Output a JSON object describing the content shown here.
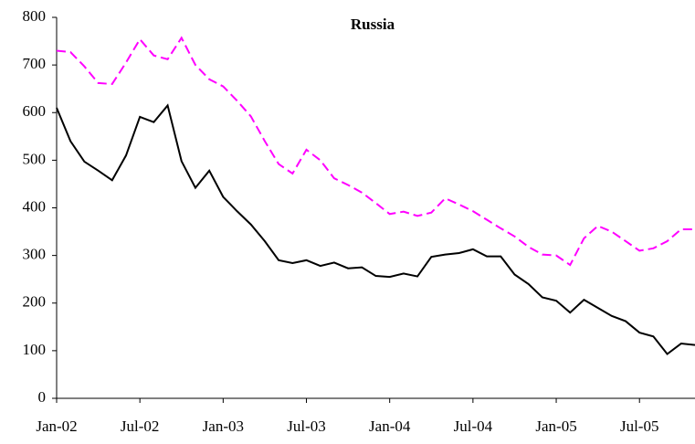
{
  "chart_data": {
    "type": "line",
    "title": "Russia",
    "categories": [
      "Jan-02",
      null,
      null,
      null,
      null,
      null,
      "Jul-02",
      null,
      null,
      null,
      null,
      null,
      "Jan-03",
      null,
      null,
      null,
      null,
      null,
      "Jul-03",
      null,
      null,
      null,
      null,
      null,
      "Jan-04",
      null,
      null,
      null,
      null,
      null,
      "Jul-04",
      null,
      null,
      null,
      null,
      null,
      "Jan-05",
      null,
      null,
      null,
      null,
      null,
      "Jul-05",
      null,
      null,
      null,
      null
    ],
    "series": [
      {
        "color": "#000000",
        "dash": "solid",
        "values": [
          610,
          540,
          497,
          478,
          458,
          510,
          591,
          580,
          615,
          498,
          442,
          478,
          423,
          393,
          365,
          330,
          290,
          284,
          290,
          278,
          285,
          273,
          275,
          257,
          255,
          262,
          256,
          297,
          302,
          305,
          313,
          298,
          298,
          260,
          240,
          212,
          205,
          180,
          207,
          190,
          173,
          162,
          138,
          130,
          93,
          115,
          112
        ]
      },
      {
        "color": "#ff00ff",
        "dash": "dashed",
        "values": [
          730,
          727,
          697,
          662,
          660,
          705,
          754,
          720,
          712,
          757,
          700,
          670,
          655,
          625,
          592,
          540,
          492,
          472,
          522,
          500,
          462,
          448,
          432,
          410,
          387,
          392,
          383,
          390,
          420,
          407,
          393,
          375,
          357,
          340,
          318,
          302,
          300,
          280,
          336,
          362,
          350,
          330,
          310,
          315,
          330,
          355,
          355
        ]
      }
    ],
    "ylim": [
      0,
      800
    ],
    "yticks": [
      0,
      100,
      200,
      300,
      400,
      500,
      600,
      700,
      800
    ],
    "grid": false
  }
}
